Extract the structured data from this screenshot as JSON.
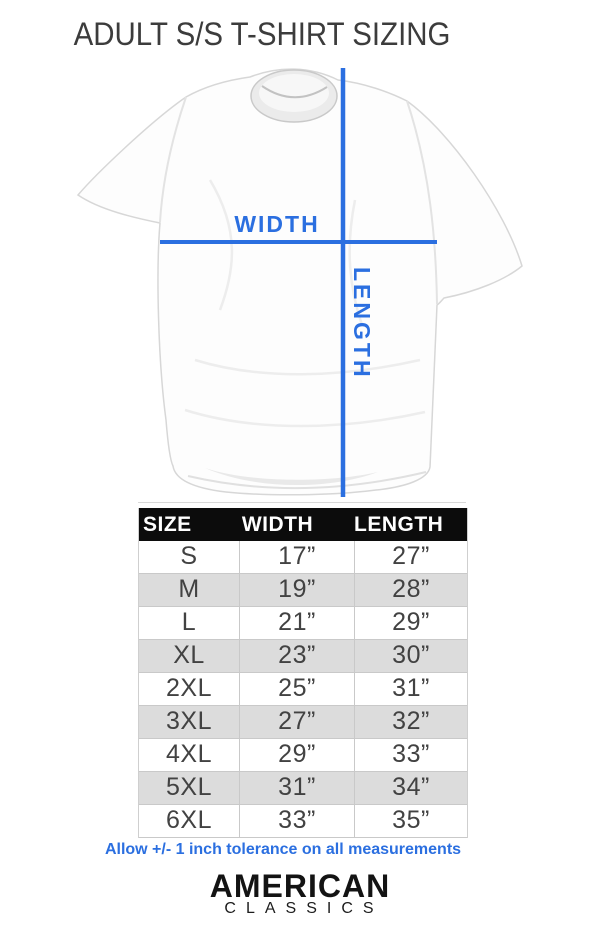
{
  "title": "ADULT S/S T-SHIRT SIZING",
  "diagram": {
    "width_label": "WIDTH",
    "length_label": "LENGTH"
  },
  "chart_data": {
    "type": "table",
    "title": "ADULT S/S T-SHIRT SIZING",
    "columns": [
      "SIZE",
      "WIDTH",
      "LENGTH"
    ],
    "rows": [
      {
        "size": "S",
        "width": "17”",
        "length": "27”"
      },
      {
        "size": "M",
        "width": "19”",
        "length": "28”"
      },
      {
        "size": "L",
        "width": "21”",
        "length": "29”"
      },
      {
        "size": "XL",
        "width": "23”",
        "length": "30”"
      },
      {
        "size": "2XL",
        "width": "25”",
        "length": "31”"
      },
      {
        "size": "3XL",
        "width": "27”",
        "length": "32”"
      },
      {
        "size": "4XL",
        "width": "29”",
        "length": "33”"
      },
      {
        "size": "5XL",
        "width": "31”",
        "length": "34”"
      },
      {
        "size": "6XL",
        "width": "33”",
        "length": "35”"
      }
    ],
    "units": "inches",
    "note": "Allow +/- 1 inch tolerance on all measurements"
  },
  "brand": {
    "line1": "AMERICAN",
    "line2": "CLASSICS"
  },
  "colors": {
    "accent_blue": "#2b6fe0",
    "header_bg": "#0c0c0c",
    "row_alt_bg": "#dcdcdc",
    "title_text": "#3c3c3c"
  }
}
